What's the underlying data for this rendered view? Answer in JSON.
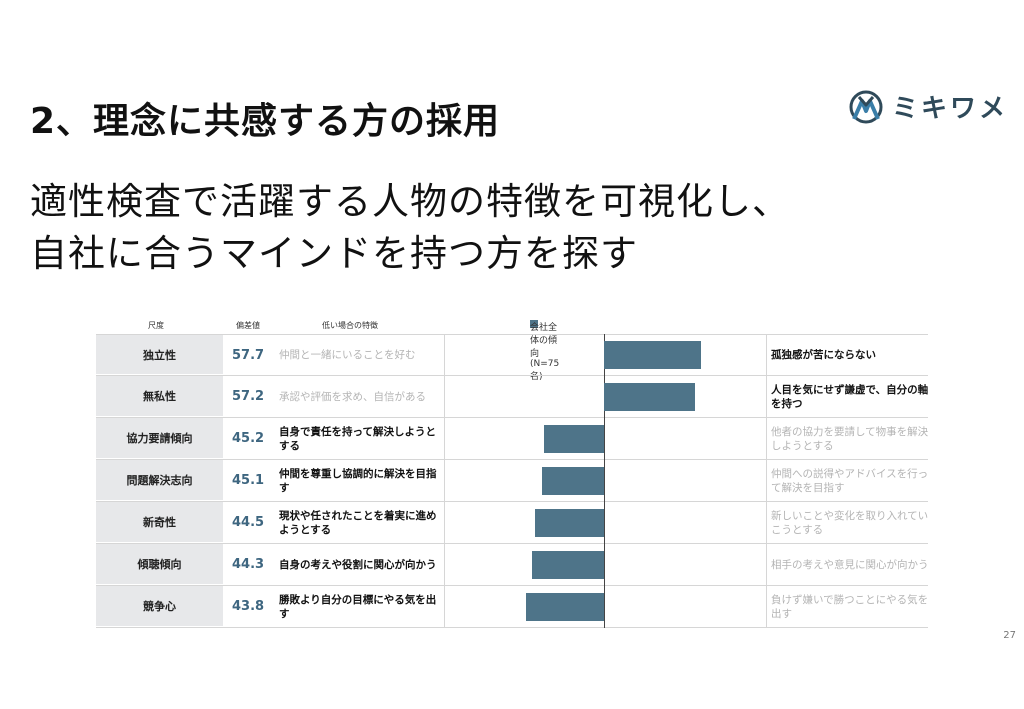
{
  "title": "2、理念に共感する方の採用",
  "subtitle_line1": "適性検査で活躍する人物の特徴を可視化し、",
  "subtitle_line2": "自社に合うマインドを持つ方を探す",
  "logo_text": "ミキワメ",
  "page_number": "27",
  "table_headers": {
    "scale": "尺度",
    "score": "偏差値",
    "low": "低い場合の特徴"
  },
  "colors": {
    "bar": "#4e7489",
    "score": "#3e6680"
  },
  "chart_data": {
    "type": "bar",
    "orientation": "horizontal",
    "legend": "会社全体の傾向(N=75名)",
    "baseline": 50,
    "categories": [
      "独立性",
      "無私性",
      "協力要請傾向",
      "問題解決志向",
      "新奇性",
      "傾聴傾向",
      "競争心"
    ],
    "values": [
      57.7,
      57.2,
      45.2,
      45.1,
      44.5,
      44.3,
      43.8
    ],
    "value_labels": [
      "57.7",
      "57.2",
      "45.2",
      "45.1",
      "44.5",
      "44.3",
      "43.8"
    ],
    "low_descriptions": [
      "仲間と一緒にいることを好む",
      "承認や評価を求め、自信がある",
      "自身で責任を持って解決しようとする",
      "仲間を尊重し協調的に解決を目指す",
      "現状や任されたことを着実に進めようとする",
      "自身の考えや役割に関心が向かう",
      "勝敗より自分の目標にやる気を出す"
    ],
    "high_descriptions": [
      "孤独感が苦にならない",
      "人目を気にせず謙虚で、自分の軸を持つ",
      "他者の協力を要請して物事を解決しようとする",
      "仲間への説得やアドバイスを行って解決を目指す",
      "新しいことや変化を取り入れていこうとする",
      "相手の考えや意見に関心が向かう",
      "負けず嫌いで勝つことにやる気を出す"
    ]
  }
}
